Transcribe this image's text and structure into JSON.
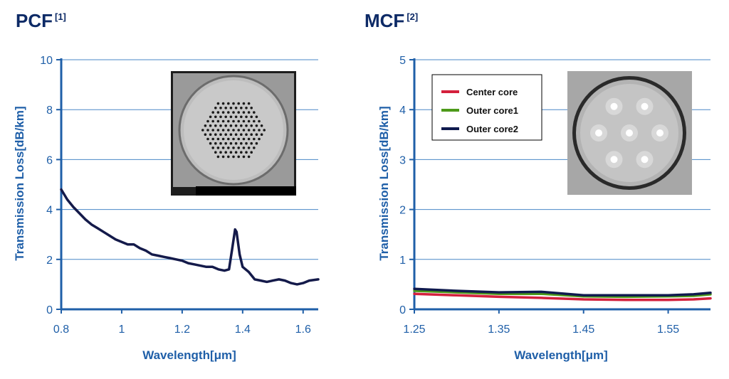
{
  "pcf": {
    "title": "PCF",
    "ref": "[1]"
  },
  "mcf": {
    "title": "MCF",
    "ref": "[2]"
  },
  "colors": {
    "axis": "#1f5fa8",
    "grid": "#4a87c7",
    "pcf_line": "#141a4a",
    "center_core": "#d4203c",
    "outer_core1": "#4d9a1a",
    "outer_core2": "#0f1a4e"
  },
  "chart_data": [
    {
      "id": "pcf",
      "type": "line",
      "xlabel": "Wavelength[μm]",
      "ylabel": "Transmission Loss[dB/km]",
      "xlim": [
        0.8,
        1.65
      ],
      "ylim": [
        0,
        10
      ],
      "xticks": [
        0.8,
        1,
        1.2,
        1.4,
        1.6
      ],
      "xtick_labels": [
        "0.8",
        "1",
        "1.2",
        "1.4",
        "1.6"
      ],
      "yticks": [
        0,
        2,
        4,
        6,
        8,
        10
      ],
      "ytick_labels": [
        "0",
        "2",
        "4",
        "6",
        "8",
        "10"
      ],
      "grid": "horizontal",
      "series": [
        {
          "color": "#141a4a",
          "x": [
            0.8,
            0.82,
            0.84,
            0.86,
            0.88,
            0.9,
            0.92,
            0.94,
            0.96,
            0.98,
            1.0,
            1.02,
            1.04,
            1.06,
            1.08,
            1.1,
            1.12,
            1.14,
            1.16,
            1.18,
            1.2,
            1.22,
            1.24,
            1.26,
            1.28,
            1.3,
            1.32,
            1.34,
            1.355,
            1.365,
            1.375,
            1.38,
            1.39,
            1.4,
            1.42,
            1.44,
            1.46,
            1.48,
            1.5,
            1.52,
            1.54,
            1.56,
            1.58,
            1.6,
            1.62,
            1.65
          ],
          "y": [
            4.8,
            4.4,
            4.1,
            3.85,
            3.6,
            3.4,
            3.25,
            3.1,
            2.95,
            2.8,
            2.7,
            2.6,
            2.6,
            2.45,
            2.35,
            2.2,
            2.15,
            2.1,
            2.05,
            2.0,
            1.95,
            1.85,
            1.8,
            1.75,
            1.7,
            1.7,
            1.6,
            1.55,
            1.6,
            2.4,
            3.2,
            3.1,
            2.2,
            1.7,
            1.5,
            1.2,
            1.15,
            1.1,
            1.15,
            1.2,
            1.15,
            1.05,
            1.0,
            1.05,
            1.15,
            1.2
          ]
        }
      ]
    },
    {
      "id": "mcf",
      "type": "line",
      "xlabel": "Wavelength[μm]",
      "ylabel": "Transmission Loss[dB/km]",
      "xlim": [
        1.25,
        1.6
      ],
      "ylim": [
        0,
        5
      ],
      "xticks": [
        1.25,
        1.35,
        1.45,
        1.55
      ],
      "xtick_labels": [
        "1.25",
        "1.35",
        "1.45",
        "1.55"
      ],
      "yticks": [
        0,
        1,
        2,
        3,
        4,
        5
      ],
      "ytick_labels": [
        "0",
        "1",
        "2",
        "3",
        "4",
        "5"
      ],
      "grid": "horizontal",
      "legend": "top-left",
      "series": [
        {
          "name": "Center core",
          "color": "#d4203c",
          "x": [
            1.25,
            1.3,
            1.35,
            1.4,
            1.45,
            1.5,
            1.55,
            1.58,
            1.6
          ],
          "y": [
            0.31,
            0.28,
            0.25,
            0.23,
            0.2,
            0.19,
            0.19,
            0.2,
            0.22
          ]
        },
        {
          "name": "Outer core1",
          "color": "#4d9a1a",
          "x": [
            1.25,
            1.3,
            1.35,
            1.4,
            1.45,
            1.5,
            1.55,
            1.58,
            1.6
          ],
          "y": [
            0.37,
            0.34,
            0.31,
            0.31,
            0.26,
            0.25,
            0.26,
            0.27,
            0.3
          ]
        },
        {
          "name": "Outer core2",
          "color": "#0f1a4e",
          "x": [
            1.25,
            1.3,
            1.35,
            1.4,
            1.45,
            1.5,
            1.55,
            1.58,
            1.6
          ],
          "y": [
            0.41,
            0.37,
            0.34,
            0.35,
            0.28,
            0.28,
            0.28,
            0.3,
            0.33
          ]
        }
      ]
    }
  ]
}
